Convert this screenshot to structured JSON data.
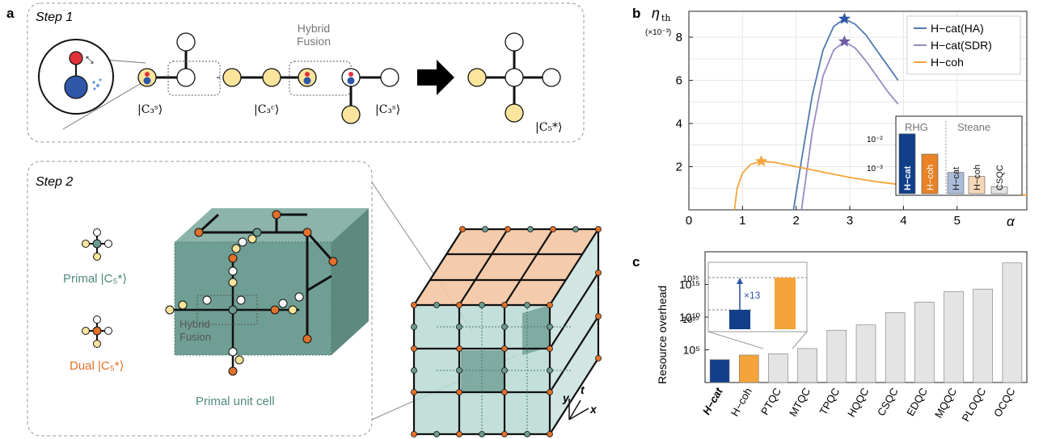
{
  "panel_a": {
    "letter": "a",
    "step1_title": "Step 1",
    "step2_title": "Step 2",
    "hybrid_fusion_line1": "Hybrid",
    "hybrid_fusion_line2": "Fusion",
    "ket_c3s_1": "|C₃ˢ⟩",
    "ket_c3c": "|C₃ᶜ⟩",
    "ket_c3s_2": "|C₃ˢ⟩",
    "ket_c5": "|C₅*⟩",
    "primal_label": "Primal |C₅*⟩",
    "dual_label": "Dual |C₅*⟩",
    "hybrid_fusion_cube": "Hybrid\nFusion",
    "primal_unit_cell": "Primal unit cell",
    "axis_y": "y",
    "axis_t": "t",
    "axis_x": "x",
    "colors": {
      "cat_yellow": "#fbe49c",
      "red": "#e13239",
      "blue": "#2f57a7",
      "teal": "#6b9a8f",
      "teal_light": "#b9d9d4",
      "orange": "#e2712b",
      "peach": "#f3c7a2"
    }
  },
  "panel_b": {
    "letter": "b",
    "y_title": "η",
    "y_title_sub": "th",
    "y_unit": "(×10⁻³)",
    "x_title": "α",
    "chart_data": {
      "type": "line",
      "xlim": [
        0,
        6.3
      ],
      "ylim": [
        0,
        9.2
      ],
      "x_ticks": [
        "0",
        "1",
        "2",
        "3",
        "4",
        "5"
      ],
      "y_ticks": [
        "2",
        "4",
        "6",
        "8"
      ],
      "grid": true,
      "legend_position": "top-right",
      "series": [
        {
          "name": "H−cat(HA)",
          "color": "#4f79ae",
          "x": [
            1.95,
            2.1,
            2.3,
            2.5,
            2.7,
            2.9,
            3.1,
            3.3,
            3.5,
            3.7,
            3.9
          ],
          "y": [
            0,
            2.3,
            5.3,
            7.4,
            8.5,
            8.85,
            8.6,
            8.1,
            7.4,
            6.7,
            6.0
          ],
          "peak": [
            2.9,
            8.85
          ]
        },
        {
          "name": "H−cat(SDR)",
          "color": "#9b89c4",
          "x": [
            2.1,
            2.3,
            2.5,
            2.7,
            2.9,
            3.1,
            3.3,
            3.5,
            3.7,
            3.9
          ],
          "y": [
            0,
            3.6,
            6.2,
            7.4,
            7.8,
            7.5,
            6.9,
            6.2,
            5.5,
            4.9
          ],
          "peak": [
            2.9,
            7.8
          ]
        },
        {
          "name": "H−coh",
          "color": "#f4a43a",
          "x": [
            0.85,
            0.9,
            1.0,
            1.15,
            1.35,
            1.6,
            2.0,
            2.5,
            3.0,
            3.5,
            4.0,
            4.5,
            5.0,
            5.5,
            6.0,
            6.3
          ],
          "y": [
            0,
            1.0,
            1.7,
            2.1,
            2.25,
            2.2,
            2.0,
            1.75,
            1.5,
            1.3,
            1.15,
            1.0,
            0.9,
            0.8,
            0.72,
            0.68
          ],
          "peak": [
            1.35,
            2.25
          ]
        }
      ]
    },
    "inset": {
      "group1": "RHG",
      "group2": "Steane",
      "y_ticks": [
        "10⁻²",
        "10⁻³"
      ],
      "bars": [
        {
          "label": "H−cat",
          "value": 0.0085,
          "color": "#123f8a",
          "bold": true
        },
        {
          "label": "H−coh",
          "value": 0.0022,
          "color": "#e98325",
          "bold": false
        },
        {
          "label": "H−cat",
          "value": 0.00065,
          "color": "#a9bdd8",
          "bold": false
        },
        {
          "label": "H−coh",
          "value": 0.0005,
          "color": "#f8d7b8",
          "bold": false
        },
        {
          "label": "CSQC",
          "value": 0.00025,
          "color": "#e2e2e2",
          "bold": false
        }
      ]
    }
  },
  "panel_c": {
    "letter": "c",
    "y_title": "Resource overhead",
    "y_ticks": [
      "10¹⁵",
      "10¹⁰",
      "10⁵"
    ],
    "inset_ticks": [
      "10¹⁵",
      "10¹⁰"
    ],
    "inset_note": "×13",
    "chart_data": {
      "type": "bar",
      "log_scale": true,
      "ylim_log10": [
        0,
        20
      ],
      "categories": [
        "H−cat",
        "H−coh",
        "PTQC",
        "MTQC",
        "TPQC",
        "HQQC",
        "CSQC",
        "EDQC",
        "MQQC",
        "PLOQC",
        "OCQC"
      ],
      "values_log10": [
        3.5,
        4.2,
        4.4,
        5.2,
        8.0,
        8.8,
        10.7,
        12.3,
        13.9,
        14.3,
        18.3
      ],
      "colors": [
        "#123f8a",
        "#f4a43a",
        "#e4e4e4",
        "#e4e4e4",
        "#e4e4e4",
        "#e4e4e4",
        "#e4e4e4",
        "#e4e4e4",
        "#e4e4e4",
        "#e4e4e4",
        "#e4e4e4"
      ]
    }
  }
}
